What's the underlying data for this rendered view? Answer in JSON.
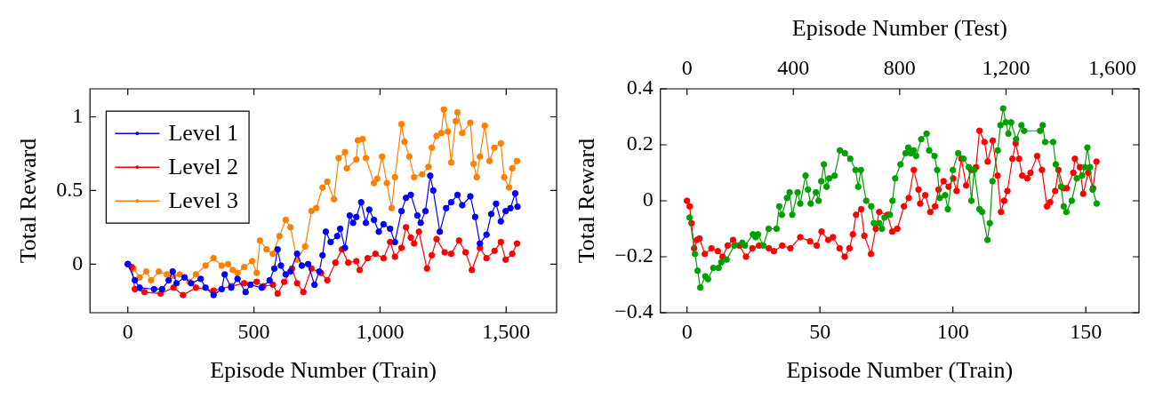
{
  "chart_data": [
    {
      "type": "line",
      "xlabel": "Episode Number (Train)",
      "ylabel": "Total Reward",
      "xlim": [
        -150,
        1700
      ],
      "xticks": [
        0,
        500,
        {
          "value": 1000,
          "label": "1,000"
        },
        {
          "value": 1500,
          "label": "1,500"
        }
      ],
      "ylim": [
        -0.33,
        1.19
      ],
      "yticks": [
        0,
        0.5,
        1
      ],
      "grid": false,
      "legend": "top left",
      "marker": "circle",
      "line_style": "solid",
      "series": [
        {
          "name": "Level 1",
          "color": "#0000ff",
          "x": [
            0,
            28,
            47,
            104,
            136,
            162,
            178,
            193,
            225,
            251,
            289,
            308,
            340,
            372,
            384,
            410,
            435,
            467,
            486,
            531,
            562,
            581,
            594,
            607,
            626,
            645,
            671,
            690,
            715,
            740,
            759,
            772,
            785,
            804,
            830,
            842,
            861,
            880,
            893,
            906,
            925,
            944,
            957,
            976,
            995,
            1014,
            1040,
            1059,
            1085,
            1103,
            1122,
            1148,
            1161,
            1180,
            1199,
            1211,
            1237,
            1262,
            1282,
            1307,
            1326,
            1358,
            1377,
            1396,
            1422,
            1441,
            1460,
            1479,
            1498,
            1517,
            1536,
            1545
          ],
          "values": [
            0,
            -0.11,
            -0.16,
            -0.17,
            -0.17,
            -0.11,
            -0.05,
            -0.13,
            -0.09,
            -0.13,
            -0.1,
            -0.16,
            -0.21,
            -0.17,
            -0.07,
            -0.16,
            -0.1,
            -0.19,
            -0.14,
            -0.16,
            -0.11,
            -0.03,
            0.1,
            -0.01,
            -0.07,
            -0.05,
            0.07,
            -0.01,
            0,
            -0.14,
            -0.05,
            0.06,
            0.22,
            0.15,
            0.19,
            0.24,
            0.11,
            0.33,
            0.28,
            0.32,
            0.42,
            0.28,
            0.37,
            0.3,
            0.22,
            0.27,
            0.24,
            0.15,
            0.36,
            0.45,
            0.47,
            0.33,
            0.28,
            0.36,
            0.6,
            0.5,
            0.22,
            0.38,
            0.42,
            0.47,
            0.4,
            0.46,
            0.32,
            0.14,
            0.2,
            0.34,
            0.41,
            0.29,
            0.36,
            0.38,
            0.48,
            0.39
          ]
        },
        {
          "name": "Level 2",
          "color": "#ff0000",
          "x": [
            0,
            15,
            28,
            66,
            130,
            181,
            219,
            270,
            340,
            410,
            461,
            511,
            537,
            575,
            594,
            620,
            651,
            671,
            696,
            728,
            766,
            791,
            823,
            849,
            874,
            906,
            919,
            951,
            982,
            1014,
            1040,
            1059,
            1085,
            1103,
            1122,
            1135,
            1154,
            1186,
            1205,
            1224,
            1256,
            1282,
            1313,
            1339,
            1364,
            1396,
            1422,
            1454,
            1479,
            1498,
            1524,
            1543
          ],
          "values": [
            0,
            -0.02,
            -0.17,
            -0.19,
            -0.2,
            -0.16,
            -0.21,
            -0.16,
            -0.18,
            -0.15,
            -0.13,
            -0.12,
            -0.15,
            -0.14,
            -0.2,
            -0.12,
            -0.03,
            -0.13,
            -0.19,
            -0.03,
            -0.06,
            -0.11,
            0.01,
            0.1,
            0.01,
            0.02,
            -0.04,
            0.04,
            0.07,
            0.04,
            0.15,
            0.05,
            0.11,
            0.25,
            0.18,
            0.14,
            0.22,
            -0.03,
            0.06,
            0.17,
            0.08,
            0.07,
            0.16,
            0.08,
            -0.04,
            0.11,
            0.04,
            0.09,
            0.15,
            0.03,
            0.07,
            0.14
          ]
        },
        {
          "name": "Level 3",
          "color": "#ff8000",
          "x": [
            0,
            22,
            47,
            73,
            92,
            123,
            155,
            181,
            206,
            244,
            270,
            308,
            340,
            372,
            397,
            416,
            435,
            461,
            493,
            511,
            524,
            550,
            575,
            601,
            626,
            645,
            671,
            703,
            728,
            747,
            772,
            791,
            817,
            836,
            861,
            868,
            906,
            912,
            931,
            944,
            976,
            989,
            1008,
            1027,
            1046,
            1059,
            1085,
            1097,
            1116,
            1135,
            1167,
            1192,
            1205,
            1224,
            1243,
            1253,
            1269,
            1282,
            1300,
            1307,
            1326,
            1358,
            1371,
            1383,
            1396,
            1415,
            1434,
            1453,
            1479,
            1492,
            1511,
            1524,
            1543
          ],
          "values": [
            0,
            -0.03,
            -0.09,
            -0.05,
            -0.11,
            -0.05,
            -0.07,
            -0.08,
            -0.07,
            -0.12,
            -0.07,
            -0.01,
            0.04,
            -0.01,
            0,
            -0.04,
            -0.06,
            -0.02,
            0.02,
            -0.06,
            0.16,
            0.1,
            0.07,
            0.19,
            0.3,
            0.25,
            0.03,
            0.12,
            0.36,
            0.38,
            0.52,
            0.56,
            0.44,
            0.72,
            0.76,
            0.65,
            0.71,
            0.84,
            0.85,
            0.72,
            0.55,
            0.58,
            0.73,
            0.55,
            0.38,
            0.59,
            0.95,
            0.83,
            0.73,
            0.59,
            0.61,
            0.66,
            0.79,
            0.87,
            0.89,
            1.05,
            0.9,
            0.69,
            0.97,
            1.03,
            0.89,
            0.96,
            0.68,
            0.59,
            0.73,
            0.94,
            0.7,
            0.79,
            0.82,
            0.59,
            0.52,
            0.65,
            0.7
          ]
        }
      ]
    },
    {
      "type": "line",
      "xlabel": "Episode Number (Train)",
      "x2label": "Episode Number (Test)",
      "ylabel": "Total Reward",
      "xlim": [
        -10,
        170
      ],
      "xticks": [
        0,
        50,
        100,
        150
      ],
      "x2lim": [
        -100,
        1700
      ],
      "x2ticks": [
        0,
        400,
        800,
        {
          "value": 1200,
          "label": "1,200"
        },
        {
          "value": 1600,
          "label": "1,600"
        }
      ],
      "ylim": [
        -0.4,
        0.4
      ],
      "yticks": [
        {
          "value": -0.4,
          "label": "−0.4"
        },
        {
          "value": -0.2,
          "label": "−0.2"
        },
        0,
        0.2,
        0.4
      ],
      "grid": false,
      "marker": "circle",
      "line_style": "solid",
      "series": [
        {
          "color": "#00a000",
          "axis": "x2",
          "x": [
            10,
            30,
            40,
            50,
            69,
            79,
            99,
            119,
            129,
            149,
            178,
            208,
            218,
            248,
            258,
            267,
            287,
            307,
            337,
            347,
            357,
            376,
            386,
            396,
            416,
            426,
            446,
            455,
            465,
            485,
            495,
            505,
            515,
            525,
            535,
            555,
            575,
            594,
            614,
            634,
            644,
            654,
            674,
            693,
            703,
            723,
            733,
            743,
            763,
            773,
            783,
            803,
            822,
            832,
            842,
            852,
            862,
            881,
            901,
            911,
            931,
            941,
            951,
            971,
            981,
            1000,
            1020,
            1040,
            1060,
            1070,
            1080,
            1100,
            1110,
            1130,
            1139,
            1149,
            1169,
            1179,
            1189,
            1199,
            1209,
            1219,
            1238,
            1258,
            1268,
            1328,
            1338,
            1347,
            1377,
            1387,
            1407,
            1417,
            1427,
            1447,
            1466,
            1486,
            1496,
            1506,
            1516,
            1526,
            1541
          ],
          "values": [
            -0.06,
            -0.19,
            -0.25,
            -0.31,
            -0.27,
            -0.28,
            -0.24,
            -0.24,
            -0.22,
            -0.21,
            -0.16,
            -0.15,
            -0.16,
            -0.12,
            -0.13,
            -0.12,
            -0.16,
            -0.1,
            -0.1,
            -0.02,
            -0.05,
            0.01,
            0.03,
            -0.05,
            0.03,
            -0.01,
            0.09,
            0.04,
            -0.01,
            0.03,
            0,
            0.07,
            0.13,
            0.05,
            0.08,
            0.09,
            0.18,
            0.17,
            0.15,
            0.11,
            0.05,
            0.11,
            0,
            -0.02,
            -0.08,
            -0.08,
            -0.1,
            -0.06,
            -0.05,
            0,
            0.08,
            0.13,
            0.17,
            0.19,
            0.17,
            0.18,
            0.16,
            0.22,
            0.24,
            0.18,
            0.16,
            0.11,
            0.01,
            0.02,
            -0.03,
            0.11,
            0.17,
            0.15,
            0.12,
            0,
            0.11,
            -0.03,
            -0.04,
            -0.14,
            -0.08,
            0.07,
            0.18,
            0.27,
            0.33,
            0.28,
            0.24,
            0.28,
            0.22,
            0.27,
            0.25,
            0.25,
            0.27,
            0.21,
            0.21,
            0.13,
            0.05,
            -0.02,
            -0.04,
            0,
            0.08,
            0.09,
            0.12,
            0.19,
            0.12,
            0.04,
            -0.01
          ]
        },
        {
          "color": "#ff0000",
          "x": [
            0,
            1,
            1.7,
            2.7,
            3.7,
            4.7,
            6.7,
            9.2,
            11.6,
            13.4,
            15.3,
            17.3,
            19.7,
            22.2,
            24.6,
            27.1,
            30.8,
            32.7,
            35.8,
            38.9,
            42.6,
            46.3,
            48.8,
            50.6,
            53.1,
            54.9,
            57.4,
            59.3,
            61.1,
            62.4,
            63.6,
            65.5,
            66.7,
            69.2,
            71,
            72.3,
            75.4,
            77.2,
            79.1,
            81.6,
            83.4,
            85.3,
            87.1,
            87.7,
            89.6,
            91.5,
            93.3,
            94.6,
            96.5,
            98.4,
            100.1,
            101.4,
            103.2,
            105,
            106.9,
            108.7,
            110,
            111.9,
            113.1,
            115,
            116.8,
            118.1,
            119.3,
            120.5,
            122.4,
            123.6,
            124.9,
            126.1,
            128,
            129.2,
            131.7,
            133.5,
            135.4,
            136.6,
            138.5,
            139.7,
            141.6,
            142.8,
            145.3,
            145.9,
            147.8,
            149,
            150.9,
            152.7,
            154
          ],
          "values": [
            0,
            -0.02,
            -0.08,
            -0.17,
            -0.14,
            -0.135,
            -0.19,
            -0.17,
            -0.18,
            -0.2,
            -0.16,
            -0.14,
            -0.16,
            -0.2,
            -0.17,
            -0.16,
            -0.17,
            -0.18,
            -0.16,
            -0.17,
            -0.13,
            -0.145,
            -0.16,
            -0.11,
            -0.14,
            -0.13,
            -0.17,
            -0.2,
            -0.17,
            -0.12,
            -0.05,
            -0.03,
            -0.125,
            -0.19,
            -0.1,
            -0.04,
            -0.05,
            -0.11,
            -0.1,
            -0.02,
            0.01,
            0.11,
            0.04,
            -0.01,
            0.02,
            -0.04,
            -0.02,
            0.04,
            0.07,
            0.05,
            0.08,
            0.035,
            0.15,
            0.055,
            0.11,
            0.12,
            0.25,
            0.21,
            0.14,
            0.215,
            0.09,
            -0.04,
            0,
            0.035,
            0.15,
            0.205,
            0.15,
            0.09,
            0.08,
            0.1,
            0.16,
            0.11,
            -0.02,
            -0.005,
            0.035,
            0.11,
            0.045,
            0.045,
            0.1,
            0.15,
            0.12,
            0.025,
            0.1,
            0.045,
            0.14
          ]
        }
      ]
    }
  ]
}
